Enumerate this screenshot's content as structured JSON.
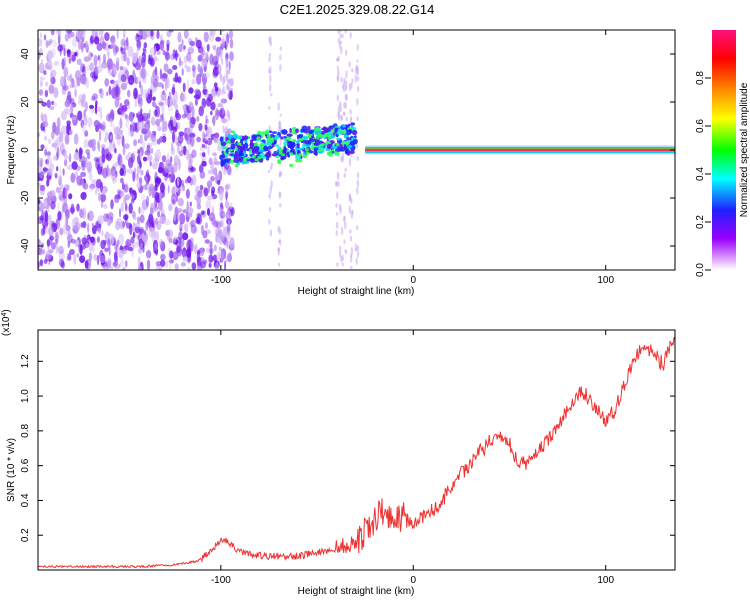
{
  "title": "C2E1.2025.329.08.22.G14",
  "chart_data": [
    {
      "type": "heatmap",
      "name": "spectrogram",
      "title": "C2E1.2025.329.08.22.G14",
      "xlabel": "Height of straight line (km)",
      "ylabel": "Frequency (Hz)",
      "xlim": [
        -195,
        136
      ],
      "ylim": [
        -50,
        50
      ],
      "xticks": [
        -100,
        0,
        100
      ],
      "xtick_labels": [
        "-100",
        "0",
        "100"
      ],
      "yticks": [
        -40,
        -20,
        0,
        20,
        40
      ],
      "ytick_labels": [
        "-40",
        "-20",
        "0",
        "20",
        "40"
      ],
      "colorbar": {
        "label": "Normalized spectral amplitude",
        "range": [
          0.0,
          1.0
        ],
        "ticks": [
          0.0,
          0.2,
          0.4,
          0.6,
          0.8
        ],
        "tick_labels": [
          "0.0",
          "0.2",
          "0.4",
          "0.6",
          "0.8"
        ],
        "colors": [
          "#ffffff",
          "#cc66ff",
          "#2020ff",
          "#00ffff",
          "#00ff00",
          "#ffff00",
          "#ff8000",
          "#ff0000",
          "#ff00ff"
        ]
      },
      "regions": [
        {
          "name": "noise",
          "x_range": [
            -195,
            -100
          ],
          "freq_range": [
            -50,
            50
          ],
          "amplitude": 0.15
        },
        {
          "name": "transition-band",
          "x_range": [
            -100,
            -30
          ],
          "center_freq": [
            0,
            5
          ],
          "width_hz": 12,
          "amplitude": 0.4
        },
        {
          "name": "carrier-tone",
          "x_range": [
            -25,
            136
          ],
          "center_freq": [
            0,
            0
          ],
          "width_hz": 2,
          "amplitude": 0.85
        }
      ]
    },
    {
      "type": "line",
      "name": "snr",
      "xlabel": "Height of straight line (km)",
      "ylabel": "SNR (10 * v/v)",
      "y_multiplier_label": "(x10",
      "y_multiplier_exp": "4",
      "y_scale": 10000,
      "xlim": [
        -195,
        136
      ],
      "ylim": [
        0,
        1.38
      ],
      "xticks": [
        -100,
        0,
        100
      ],
      "xtick_labels": [
        "-100",
        "0",
        "100"
      ],
      "yticks": [
        0.2,
        0.4,
        0.6,
        0.8,
        1.0,
        1.2
      ],
      "ytick_labels": [
        "0.2",
        "0.4",
        "0.6",
        "0.8",
        "1.0",
        "1.2"
      ],
      "series": [
        {
          "name": "SNR",
          "color": "#ee3333",
          "x": [
            -195,
            -170,
            -140,
            -125,
            -112,
            -106,
            -102,
            -98,
            -92,
            -85,
            -75,
            -60,
            -50,
            -40,
            -30,
            -25,
            -20,
            -15,
            -10,
            -5,
            0,
            5,
            10,
            15,
            20,
            30,
            40,
            45,
            50,
            55,
            60,
            70,
            75,
            80,
            85,
            88,
            92,
            95,
            100,
            105,
            110,
            115,
            120,
            125,
            130,
            136
          ],
          "values": [
            0.02,
            0.02,
            0.02,
            0.03,
            0.05,
            0.1,
            0.15,
            0.18,
            0.12,
            0.09,
            0.08,
            0.08,
            0.1,
            0.12,
            0.16,
            0.22,
            0.3,
            0.35,
            0.3,
            0.3,
            0.28,
            0.3,
            0.34,
            0.4,
            0.48,
            0.62,
            0.74,
            0.78,
            0.72,
            0.62,
            0.62,
            0.75,
            0.83,
            0.92,
            1.0,
            1.02,
            0.98,
            0.92,
            0.86,
            0.92,
            1.08,
            1.2,
            1.3,
            1.24,
            1.18,
            1.36
          ]
        }
      ]
    }
  ]
}
